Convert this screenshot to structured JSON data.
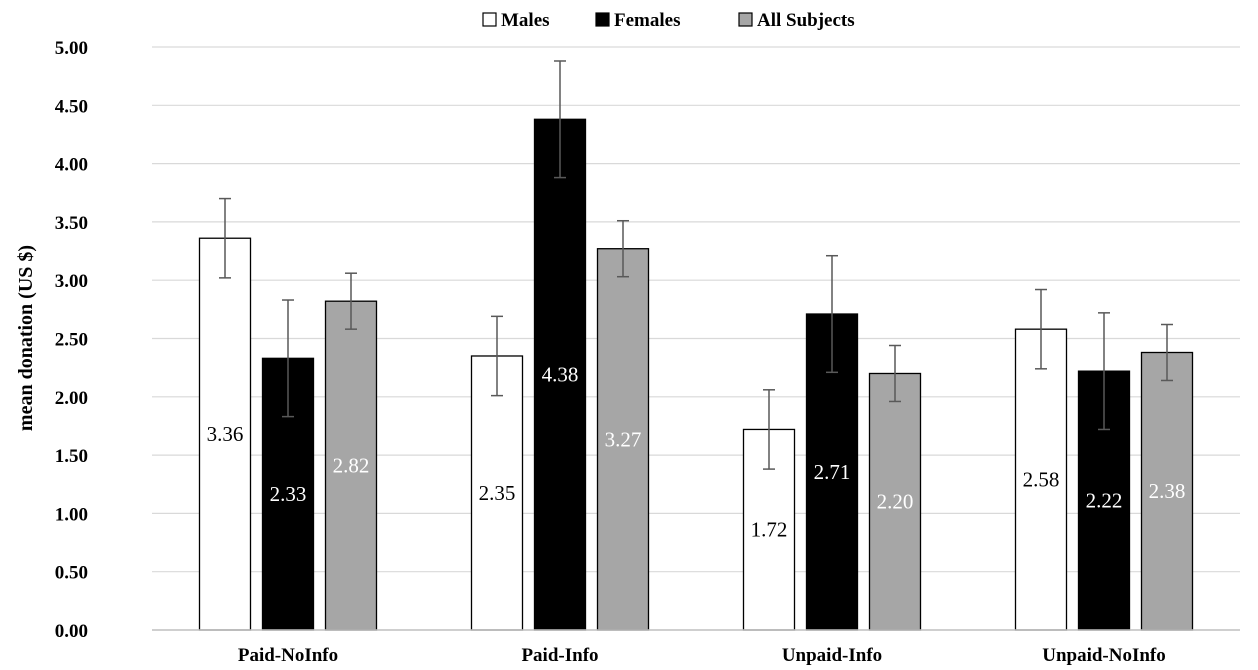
{
  "chart_data": {
    "type": "bar",
    "title": "",
    "xlabel": "",
    "ylabel": "mean donation (US $)",
    "ylim": [
      0,
      5
    ],
    "yticks": [
      "0.00",
      "0.50",
      "1.00",
      "1.50",
      "2.00",
      "2.50",
      "3.00",
      "3.50",
      "4.00",
      "4.50",
      "5.00"
    ],
    "grid": true,
    "legend_position": "top-center",
    "categories": [
      "Paid-NoInfo",
      "Paid-Info",
      "Unpaid-Info",
      "Unpaid-NoInfo"
    ],
    "series": [
      {
        "name": "Males",
        "color": "#ffffff",
        "label_color": "#000000",
        "values": [
          3.36,
          2.35,
          1.72,
          2.58
        ],
        "labels": [
          "3.36",
          "2.35",
          "1.72",
          "2.58"
        ],
        "error": [
          0.34,
          0.34,
          0.34,
          0.34
        ]
      },
      {
        "name": "Females",
        "color": "#000000",
        "label_color": "#ffffff",
        "values": [
          2.33,
          4.38,
          2.71,
          2.22
        ],
        "labels": [
          "2.33",
          "4.38",
          "2.71",
          "2.22"
        ],
        "error": [
          0.5,
          0.5,
          0.5,
          0.5
        ]
      },
      {
        "name": "All Subjects",
        "color": "#a6a6a6",
        "label_color": "#ffffff",
        "values": [
          2.82,
          3.27,
          2.2,
          2.38
        ],
        "labels": [
          "2.82",
          "3.27",
          "2.20",
          "2.38"
        ],
        "error": [
          0.24,
          0.24,
          0.24,
          0.24
        ]
      }
    ]
  }
}
